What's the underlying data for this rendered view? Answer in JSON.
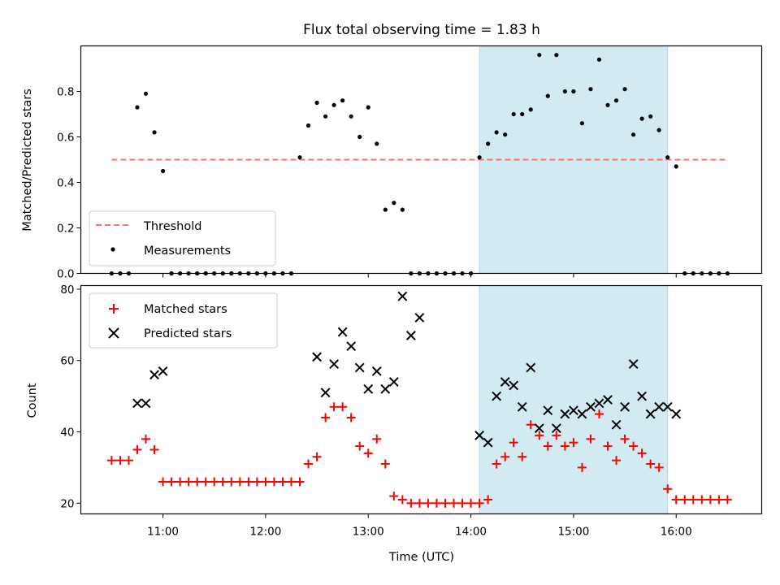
{
  "figure": {
    "title": "Flux total observing time = 1.83 h",
    "xlabel": "Time (UTC)",
    "x_tick_labels": [
      "11:00",
      "12:00",
      "13:00",
      "14:00",
      "15:00",
      "16:00"
    ],
    "colors": {
      "threshold": "#ff7070",
      "measurement": "#000000",
      "matched": "#ff0000",
      "predicted": "#000000",
      "highlight": "#add8e6"
    }
  },
  "chart_data": [
    {
      "type": "scatter",
      "ylabel": "Matched/Predicted stars",
      "ylim": [
        0.0,
        1.0
      ],
      "yticks": [
        "0.0",
        "0.2",
        "0.4",
        "0.6",
        "0.8"
      ],
      "xlim": [
        "10:12",
        "16:50"
      ],
      "highlight_span": [
        "14:05",
        "15:55"
      ],
      "threshold": {
        "name": "Threshold",
        "value": 0.5,
        "x_range": [
          "10:30",
          "16:30"
        ]
      },
      "legend": {
        "placement": "lower left",
        "entries": [
          "Threshold",
          "Measurements"
        ]
      },
      "series": [
        {
          "name": "Measurements",
          "x": [
            "10:30",
            "10:35",
            "10:40",
            "10:45",
            "10:50",
            "10:55",
            "11:00",
            "11:05",
            "11:10",
            "11:15",
            "11:20",
            "11:25",
            "11:30",
            "11:35",
            "11:40",
            "11:45",
            "11:50",
            "11:55",
            "12:00",
            "12:05",
            "12:10",
            "12:15",
            "12:20",
            "12:25",
            "12:30",
            "12:35",
            "12:40",
            "12:45",
            "12:50",
            "12:55",
            "13:00",
            "13:05",
            "13:10",
            "13:15",
            "13:20",
            "13:25",
            "13:30",
            "13:35",
            "13:40",
            "13:45",
            "13:50",
            "13:55",
            "14:00",
            "14:05",
            "14:10",
            "14:15",
            "14:20",
            "14:25",
            "14:30",
            "14:35",
            "14:40",
            "14:45",
            "14:50",
            "14:55",
            "15:00",
            "15:05",
            "15:10",
            "15:15",
            "15:20",
            "15:25",
            "15:30",
            "15:35",
            "15:40",
            "15:45",
            "15:50",
            "15:55",
            "16:00",
            "16:05",
            "16:10",
            "16:15",
            "16:20",
            "16:25",
            "16:30"
          ],
          "y": [
            0,
            0,
            0,
            0.73,
            0.79,
            0.62,
            0.45,
            0,
            0,
            0,
            0,
            0,
            0,
            0,
            0,
            0,
            0,
            0,
            0,
            0,
            0,
            0,
            0.51,
            0.65,
            0.75,
            0.69,
            0.74,
            0.76,
            0.69,
            0.6,
            0.73,
            0.57,
            0.28,
            0.31,
            0.28,
            0,
            0,
            0,
            0,
            0,
            0,
            0,
            0,
            0.51,
            0.57,
            0.62,
            0.61,
            0.7,
            0.7,
            0.72,
            0.96,
            0.78,
            0.96,
            0.8,
            0.8,
            0.66,
            0.81,
            0.94,
            0.74,
            0.76,
            0.81,
            0.61,
            0.68,
            0.69,
            0.63,
            0.51,
            0.47,
            0,
            0,
            0,
            0,
            0,
            0
          ]
        }
      ]
    },
    {
      "type": "scatter",
      "ylabel": "Count",
      "ylim": [
        17,
        81
      ],
      "yticks": [
        "20",
        "40",
        "60",
        "80"
      ],
      "xlim": [
        "10:12",
        "16:50"
      ],
      "highlight_span": [
        "14:05",
        "15:55"
      ],
      "legend": {
        "placement": "upper left",
        "entries": [
          "Matched stars",
          "Predicted stars"
        ]
      },
      "series": [
        {
          "name": "Matched stars",
          "x": [
            "10:30",
            "10:35",
            "10:40",
            "10:45",
            "10:50",
            "10:55",
            "11:00",
            "11:05",
            "11:10",
            "11:15",
            "11:20",
            "11:25",
            "11:30",
            "11:35",
            "11:40",
            "11:45",
            "11:50",
            "11:55",
            "12:00",
            "12:05",
            "12:10",
            "12:15",
            "12:20",
            "12:25",
            "12:30",
            "12:35",
            "12:40",
            "12:45",
            "12:50",
            "12:55",
            "13:00",
            "13:05",
            "13:10",
            "13:15",
            "13:20",
            "13:25",
            "13:30",
            "13:35",
            "13:40",
            "13:45",
            "13:50",
            "13:55",
            "14:00",
            "14:05",
            "14:10",
            "14:15",
            "14:20",
            "14:25",
            "14:30",
            "14:35",
            "14:40",
            "14:45",
            "14:50",
            "14:55",
            "15:00",
            "15:05",
            "15:10",
            "15:15",
            "15:20",
            "15:25",
            "15:30",
            "15:35",
            "15:40",
            "15:45",
            "15:50",
            "15:55",
            "16:00",
            "16:05",
            "16:10",
            "16:15",
            "16:20",
            "16:25",
            "16:30"
          ],
          "y": [
            32,
            32,
            32,
            35,
            38,
            35,
            26,
            26,
            26,
            26,
            26,
            26,
            26,
            26,
            26,
            26,
            26,
            26,
            26,
            26,
            26,
            26,
            26,
            31,
            33,
            44,
            47,
            47,
            44,
            36,
            34,
            38,
            31,
            22,
            21,
            20,
            20,
            20,
            20,
            20,
            20,
            20,
            20,
            20,
            21,
            31,
            33,
            37,
            33,
            42,
            39,
            36,
            39,
            36,
            37,
            30,
            38,
            45,
            36,
            32,
            38,
            36,
            34,
            31,
            30,
            24,
            21,
            21,
            21,
            21,
            21,
            21,
            21
          ]
        },
        {
          "name": "Predicted stars",
          "x": [
            "10:45",
            "10:50",
            "10:55",
            "11:00",
            "12:30",
            "12:35",
            "12:40",
            "12:45",
            "12:50",
            "12:55",
            "13:00",
            "13:05",
            "13:10",
            "13:15",
            "13:20",
            "13:25",
            "13:30",
            "14:05",
            "14:10",
            "14:15",
            "14:20",
            "14:25",
            "14:30",
            "14:35",
            "14:40",
            "14:45",
            "14:50",
            "14:55",
            "15:00",
            "15:05",
            "15:10",
            "15:15",
            "15:20",
            "15:25",
            "15:30",
            "15:35",
            "15:40",
            "15:45",
            "15:50",
            "15:55",
            "16:00"
          ],
          "y": [
            48,
            48,
            56,
            57,
            61,
            51,
            59,
            68,
            64,
            58,
            52,
            57,
            52,
            54,
            78,
            67,
            72,
            39,
            37,
            50,
            54,
            53,
            47,
            58,
            41,
            46,
            41,
            45,
            46,
            45,
            47,
            48,
            49,
            42,
            47,
            59,
            50,
            45,
            47,
            47,
            45
          ]
        }
      ]
    }
  ]
}
